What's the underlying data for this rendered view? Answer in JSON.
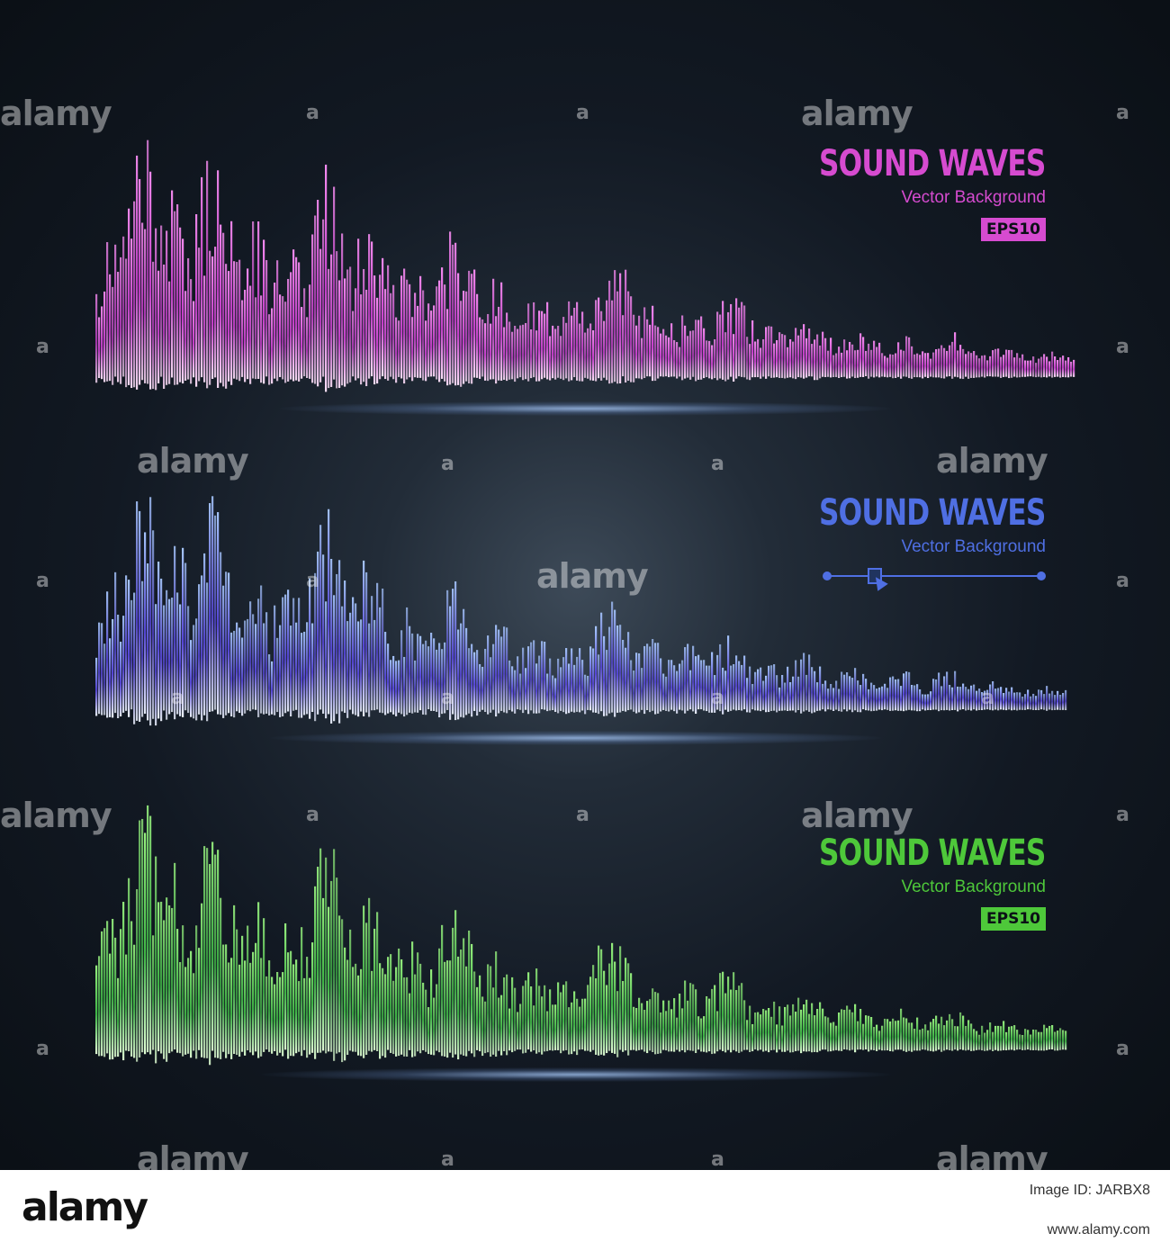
{
  "watermark": {
    "word": "alamy",
    "letter": "a"
  },
  "panels": [
    {
      "title": "SOUND WAVES",
      "subtitle": "Vector Background",
      "badge": "EPS10",
      "colors": {
        "top": "#f78cf2",
        "mid": "#c53fca",
        "low": "#ffe3fb",
        "text": "#d64bd0"
      }
    },
    {
      "title": "SOUND WAVES",
      "subtitle": "Vector Background",
      "colors": {
        "top": "#a8c8ff",
        "mid": "#5646d8",
        "low": "#eef4ff",
        "text": "#4f6fe3"
      }
    },
    {
      "title": "SOUND WAVES",
      "subtitle": "Vector Background",
      "badge": "EPS10",
      "colors": {
        "top": "#97f07f",
        "mid": "#3fb646",
        "low": "#e2ffd6",
        "text": "#4ec83a"
      }
    }
  ],
  "footer": {
    "logo": "alamy",
    "image_id": "Image ID: JARBX8",
    "site": "www.alamy.com"
  }
}
